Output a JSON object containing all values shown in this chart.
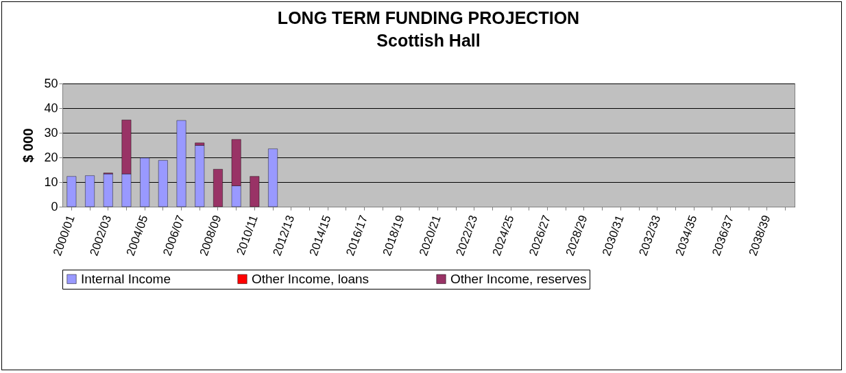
{
  "chart_data": {
    "type": "bar",
    "title": "LONG TERM FUNDING PROJECTION",
    "subtitle": "Scottish Hall",
    "ylabel": "$ 000",
    "categories": [
      "2000/01",
      null,
      "2002/03",
      null,
      "2004/05",
      null,
      "2006/07",
      null,
      "2008/09",
      null,
      "2010/11",
      null,
      "2012/13",
      null,
      "2014/15",
      null,
      "2016/17",
      null,
      "2018/19",
      null,
      "2020/21",
      null,
      "2022/23",
      null,
      "2024/25",
      null,
      "2026/27",
      null,
      "2028/29",
      null,
      "2030/31",
      null,
      "2032/33",
      null,
      "2034/35",
      null,
      "2036/37",
      null,
      "2038/39",
      null
    ],
    "stacked": true,
    "series": [
      {
        "name": "Internal Income",
        "color": "#9999ff",
        "values": [
          12.3,
          12.6,
          13.3,
          13.3,
          19.8,
          18.8,
          35.0,
          24.9,
          null,
          8.5,
          null,
          23.5,
          null,
          null,
          null,
          null,
          null,
          null,
          null,
          null,
          null,
          null,
          null,
          null,
          null,
          null,
          null,
          null,
          null,
          null,
          null,
          null,
          null,
          null,
          null,
          null,
          null,
          null,
          null,
          null
        ]
      },
      {
        "name": "Other Income, loans",
        "color": "#ff0000",
        "values": [
          null,
          null,
          null,
          null,
          null,
          null,
          null,
          null,
          null,
          null,
          null,
          null,
          null,
          null,
          null,
          null,
          null,
          null,
          null,
          null,
          null,
          null,
          null,
          null,
          null,
          null,
          null,
          null,
          null,
          null,
          null,
          null,
          null,
          null,
          null,
          null,
          null,
          null,
          null,
          null
        ]
      },
      {
        "name": "Other Income, reserves",
        "color": "#993366",
        "values": [
          null,
          null,
          0.4,
          21.9,
          null,
          null,
          null,
          1.0,
          15.2,
          18.8,
          12.3,
          null,
          null,
          null,
          null,
          null,
          null,
          null,
          null,
          null,
          null,
          null,
          null,
          null,
          null,
          null,
          null,
          null,
          null,
          null,
          null,
          null,
          null,
          null,
          null,
          null,
          null,
          null,
          null,
          null
        ]
      }
    ],
    "ylim": [
      0,
      50
    ],
    "yticks": [
      0,
      10,
      20,
      30,
      40,
      50
    ],
    "grid": "y",
    "legend": "bottom"
  }
}
